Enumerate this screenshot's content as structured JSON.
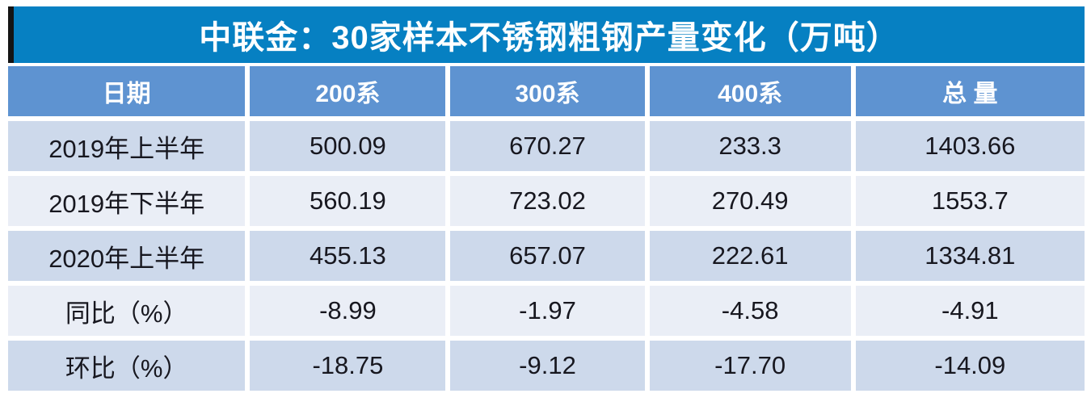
{
  "title_bar": {
    "title": "中联金：30家样本不锈钢粗钢产量变化（万吨）"
  },
  "colors": {
    "title_bg": "#0680c2",
    "title_accent": "#141414",
    "header_bg": "#5e93d1",
    "row_odd_bg": "#cdd9eb",
    "row_even_bg": "#eaeef6",
    "header_text": "#ffffff",
    "body_text": "#17171f"
  },
  "chart_data": {
    "type": "table",
    "title": "中联金：30家样本不锈钢粗钢产量变化（万吨）",
    "columns": [
      "日期",
      "200系",
      "300系",
      "400系",
      "总 量"
    ],
    "rows": [
      [
        "2019年上半年",
        "500.09",
        "670.27",
        "233.3",
        "1403.66"
      ],
      [
        "2019年下半年",
        "560.19",
        "723.02",
        "270.49",
        "1553.7"
      ],
      [
        "2020年上半年",
        "455.13",
        "657.07",
        "222.61",
        "1334.81"
      ],
      [
        "同比（%）",
        "-8.99",
        "-1.97",
        "-4.58",
        "-4.91"
      ],
      [
        "环比（%）",
        "-18.75",
        "-9.12",
        "-17.70",
        "-14.09"
      ]
    ]
  }
}
